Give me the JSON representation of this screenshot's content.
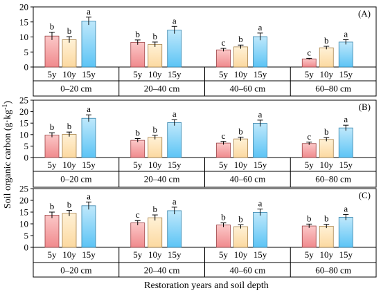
{
  "figure": {
    "ylabel_main": "Soil organic carbon (g·kg",
    "ylabel_sup": "-1",
    "ylabel_close": ")",
    "xlabel": "Restoration years and soil depth"
  },
  "chart_data": [
    {
      "type": "bar",
      "panel": "(A)",
      "ylim": [
        0,
        20
      ],
      "yticks": [
        0,
        5,
        10,
        15,
        20
      ],
      "groups": [
        "0–20 cm",
        "20–40 cm",
        "40–60 cm",
        "60–80 cm"
      ],
      "categories": [
        "5y",
        "10y",
        "15y"
      ],
      "values": [
        [
          10.3,
          9.1,
          15.3
        ],
        [
          8.2,
          7.5,
          12.3
        ],
        [
          5.7,
          6.7,
          10.1
        ],
        [
          2.7,
          6.4,
          8.3
        ]
      ],
      "errors": [
        [
          1.3,
          1.0,
          1.3
        ],
        [
          0.8,
          0.8,
          1.2
        ],
        [
          0.5,
          0.6,
          1.2
        ],
        [
          0.2,
          0.5,
          0.8
        ]
      ],
      "letters": [
        [
          "b",
          "b",
          "a"
        ],
        [
          "b",
          "b",
          "a"
        ],
        [
          "c",
          "b",
          "a"
        ],
        [
          "c",
          "b",
          "a"
        ]
      ]
    },
    {
      "type": "bar",
      "panel": "(B)",
      "ylim": [
        0,
        25
      ],
      "yticks": [
        0,
        5,
        10,
        15,
        20,
        25
      ],
      "groups": [
        "0–20 cm",
        "20–40 cm",
        "40–60 cm",
        "60–80 cm"
      ],
      "categories": [
        "5y",
        "10y",
        "15y"
      ],
      "values": [
        [
          9.8,
          10.1,
          17.1
        ],
        [
          7.5,
          8.8,
          15.2
        ],
        [
          6.3,
          8.1,
          14.9
        ],
        [
          6.1,
          7.9,
          12.9
        ]
      ],
      "errors": [
        [
          1.0,
          1.0,
          1.5
        ],
        [
          0.8,
          0.9,
          1.3
        ],
        [
          0.7,
          0.8,
          1.4
        ],
        [
          0.6,
          0.8,
          1.2
        ]
      ],
      "letters": [
        [
          "b",
          "b",
          "a"
        ],
        [
          "b",
          "b",
          "a"
        ],
        [
          "c",
          "b",
          "a"
        ],
        [
          "c",
          "b",
          "a"
        ]
      ]
    },
    {
      "type": "bar",
      "panel": "(C)",
      "ylim": [
        0,
        25
      ],
      "yticks": [
        0,
        5,
        10,
        15,
        20,
        25
      ],
      "groups": [
        "0–20 cm",
        "20–40 cm",
        "40–60 cm",
        "60–80 cm"
      ],
      "categories": [
        "5y",
        "10y",
        "15y"
      ],
      "values": [
        [
          13.7,
          14.5,
          17.7
        ],
        [
          10.4,
          12.6,
          15.6
        ],
        [
          9.5,
          8.8,
          14.9
        ],
        [
          9.1,
          9.0,
          12.8
        ]
      ],
      "errors": [
        [
          1.3,
          1.2,
          1.6
        ],
        [
          1.0,
          1.2,
          1.5
        ],
        [
          0.9,
          0.8,
          1.4
        ],
        [
          0.8,
          0.8,
          1.2
        ]
      ],
      "letters": [
        [
          "b",
          "b",
          "a"
        ],
        [
          "c",
          "b",
          "a"
        ],
        [
          "b",
          "b",
          "a"
        ],
        [
          "b",
          "b",
          "a"
        ]
      ]
    }
  ],
  "style": {
    "bar_fills": [
      "#f08a8d",
      "#fcd9a0",
      "#5cc4f5"
    ],
    "bar_fill_tops": [
      "#fbc8c8",
      "#fff1d6",
      "#bfe8fb"
    ],
    "bar_strokes": [
      "#9c4245",
      "#a8834a",
      "#2f7fa8"
    ],
    "axis_color": "#000000"
  }
}
